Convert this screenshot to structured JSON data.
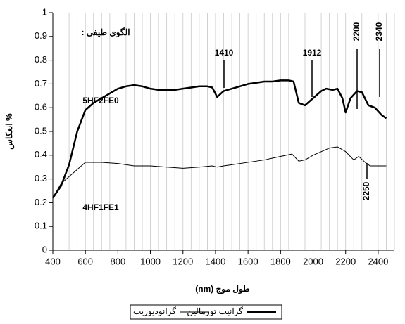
{
  "chart_data": {
    "type": "line",
    "xlabel": "طول موج (nm)",
    "ylabel": "% انعکاس",
    "annotations": [
      "الگوی طیفی :",
      "5HF2FE0",
      "4HF1FE1",
      "1410",
      "1912",
      "2200",
      "2340",
      "2250"
    ],
    "xlim": [
      400,
      2500
    ],
    "xticks": [
      400,
      600,
      800,
      1000,
      1200,
      1400,
      1600,
      1800,
      2000,
      2200,
      2400
    ],
    "xminor": [
      450,
      500,
      550,
      600,
      650,
      700,
      750,
      800,
      850,
      900,
      950,
      1000,
      1050,
      1100,
      1150,
      1200,
      1250,
      1300,
      1350,
      1400,
      1450,
      1500,
      1550,
      1600,
      1650,
      1700,
      1750,
      1800,
      1850,
      1900,
      1950,
      2000,
      2050,
      2100,
      2150,
      2200,
      2250,
      2300,
      2350,
      2400,
      2450,
      2500
    ],
    "ylim": [
      0,
      1
    ],
    "yticks": [
      0,
      0.1,
      0.2,
      0.3,
      0.4,
      0.5,
      0.6,
      0.7,
      0.8,
      0.9,
      1
    ],
    "grid": true,
    "series": [
      {
        "name": "گرانيت تورمالين",
        "color": "#000000",
        "width": 2.5,
        "x": [
          400,
          450,
          500,
          550,
          600,
          650,
          700,
          750,
          800,
          850,
          900,
          950,
          1000,
          1050,
          1100,
          1150,
          1200,
          1250,
          1300,
          1350,
          1380,
          1410,
          1450,
          1500,
          1550,
          1600,
          1650,
          1700,
          1750,
          1800,
          1850,
          1880,
          1912,
          1950,
          2000,
          2050,
          2080,
          2120,
          2150,
          2180,
          2200,
          2230,
          2270,
          2300,
          2340,
          2380,
          2420,
          2450
        ],
        "values": [
          0.22,
          0.27,
          0.36,
          0.5,
          0.59,
          0.62,
          0.64,
          0.66,
          0.68,
          0.69,
          0.695,
          0.69,
          0.68,
          0.675,
          0.675,
          0.675,
          0.68,
          0.685,
          0.69,
          0.69,
          0.685,
          0.645,
          0.67,
          0.68,
          0.69,
          0.7,
          0.705,
          0.71,
          0.71,
          0.715,
          0.715,
          0.71,
          0.62,
          0.61,
          0.64,
          0.67,
          0.68,
          0.675,
          0.68,
          0.64,
          0.58,
          0.64,
          0.67,
          0.665,
          0.61,
          0.6,
          0.57,
          0.555
        ]
      },
      {
        "name": "گرانوديوريت",
        "color": "#000000",
        "width": 1,
        "x": [
          400,
          450,
          500,
          550,
          600,
          650,
          700,
          800,
          900,
          1000,
          1100,
          1200,
          1300,
          1380,
          1410,
          1450,
          1500,
          1600,
          1700,
          1800,
          1870,
          1912,
          1950,
          2000,
          2100,
          2150,
          2200,
          2250,
          2280,
          2320,
          2350,
          2400,
          2450
        ],
        "values": [
          0.22,
          0.28,
          0.31,
          0.34,
          0.37,
          0.37,
          0.37,
          0.365,
          0.355,
          0.355,
          0.35,
          0.345,
          0.35,
          0.355,
          0.35,
          0.355,
          0.36,
          0.37,
          0.38,
          0.395,
          0.405,
          0.375,
          0.38,
          0.4,
          0.43,
          0.435,
          0.415,
          0.38,
          0.395,
          0.37,
          0.355,
          0.355,
          0.355
        ]
      }
    ]
  }
}
